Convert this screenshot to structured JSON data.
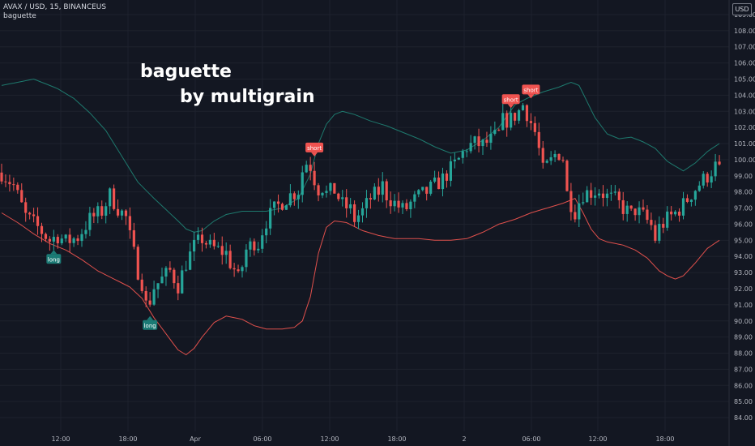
{
  "header": {
    "symbol_line": "AVAX / USD, 15, BINANCEUS",
    "indicator_name": "baguette"
  },
  "currency_badge": "USD",
  "watermark": {
    "line1": "baguette",
    "line2": "by multigrain"
  },
  "colors": {
    "background": "#131722",
    "grid": "#1e222d",
    "bull": "#26a69a",
    "bear": "#ef5350",
    "upper_band": "#1e7a6e",
    "lower_band": "#e0504c",
    "long_label": "#1b7a75",
    "short_label": "#ef5350",
    "axis_text": "#b2b5be"
  },
  "chart_data": {
    "type": "candlestick",
    "y_axis_labels": [
      "109.00",
      "108.00",
      "107.00",
      "106.00",
      "105.00",
      "104.00",
      "103.00",
      "102.00",
      "101.00",
      "100.00",
      "99.00",
      "98.00",
      "97.00",
      "96.00",
      "95.00",
      "94.00",
      "93.00",
      "92.00",
      "91.00",
      "90.00",
      "89.00",
      "88.00",
      "87.00",
      "86.00",
      "85.00",
      "84.00"
    ],
    "ylim": [
      83.5,
      109.5
    ],
    "x_axis_labels": [
      "12:00",
      "18:00",
      "Apr",
      "06:00",
      "12:00",
      "18:00",
      "2",
      "06:00",
      "12:00",
      "18:00"
    ],
    "close_path": [
      [
        0,
        99.2
      ],
      [
        3,
        98.4
      ],
      [
        6,
        96.5
      ],
      [
        9,
        95.8
      ],
      [
        12,
        95.0
      ],
      [
        14,
        95.3
      ],
      [
        16,
        94.9
      ],
      [
        19,
        95.2
      ],
      [
        22,
        96.3
      ],
      [
        25,
        96.8
      ],
      [
        27,
        97.8
      ],
      [
        29,
        97.0
      ],
      [
        31,
        96.4
      ],
      [
        32,
        95.2
      ],
      [
        34,
        93.1
      ],
      [
        35,
        92.4
      ],
      [
        36,
        91.0
      ],
      [
        37,
        91.3
      ],
      [
        38,
        92.1
      ],
      [
        40,
        92.6
      ],
      [
        42,
        93.1
      ],
      [
        44,
        92.2
      ],
      [
        46,
        93.6
      ],
      [
        48,
        94.6
      ],
      [
        50,
        95.1
      ],
      [
        52,
        94.6
      ],
      [
        54,
        94.4
      ],
      [
        56,
        94.2
      ],
      [
        57,
        93.6
      ],
      [
        58,
        93.2
      ],
      [
        59,
        92.6
      ],
      [
        60,
        93.4
      ],
      [
        61,
        94.4
      ],
      [
        63,
        94.9
      ],
      [
        64,
        94.8
      ],
      [
        65,
        95.6
      ],
      [
        66,
        96.2
      ],
      [
        68,
        96.9
      ],
      [
        70,
        97.4
      ],
      [
        72,
        97.8
      ],
      [
        74,
        98.1
      ],
      [
        75,
        99.3
      ],
      [
        76,
        99.8
      ],
      [
        77,
        99.6
      ],
      [
        78,
        98.8
      ],
      [
        79,
        98.2
      ],
      [
        80,
        98.3
      ],
      [
        81,
        97.9
      ],
      [
        83,
        98.1
      ],
      [
        85,
        97.2
      ],
      [
        87,
        96.9
      ],
      [
        88,
        96.3
      ],
      [
        90,
        96.8
      ],
      [
        92,
        97.6
      ],
      [
        94,
        98.0
      ],
      [
        95,
        98.4
      ],
      [
        96,
        97.8
      ],
      [
        98,
        97.3
      ],
      [
        100,
        96.9
      ],
      [
        101,
        97.0
      ],
      [
        102,
        97.3
      ],
      [
        104,
        97.7
      ],
      [
        106,
        98.0
      ],
      [
        108,
        98.4
      ],
      [
        110,
        98.8
      ],
      [
        112,
        99.4
      ],
      [
        114,
        100.0
      ],
      [
        116,
        100.8
      ],
      [
        118,
        101.0
      ],
      [
        120,
        100.9
      ],
      [
        122,
        101.2
      ],
      [
        124,
        101.6
      ],
      [
        125,
        102.4
      ],
      [
        127,
        102.5
      ],
      [
        129,
        103.0
      ],
      [
        130,
        103.4
      ],
      [
        131,
        102.9
      ],
      [
        133,
        101.7
      ],
      [
        134,
        100.6
      ],
      [
        135,
        99.3
      ],
      [
        137,
        99.9
      ],
      [
        138,
        100.3
      ],
      [
        139,
        100.4
      ],
      [
        140,
        100.1
      ],
      [
        141,
        97.9
      ],
      [
        142,
        97.3
      ],
      [
        143,
        96.8
      ],
      [
        144,
        97.4
      ],
      [
        145,
        97.9
      ],
      [
        147,
        98.0
      ],
      [
        149,
        98.1
      ],
      [
        151,
        97.7
      ],
      [
        153,
        97.5
      ],
      [
        155,
        97.0
      ],
      [
        157,
        96.6
      ],
      [
        158,
        96.9
      ],
      [
        160,
        96.5
      ],
      [
        161,
        96.2
      ],
      [
        162,
        95.9
      ],
      [
        163,
        95.1
      ],
      [
        164,
        95.8
      ],
      [
        166,
        96.3
      ],
      [
        168,
        96.7
      ],
      [
        170,
        97.2
      ],
      [
        172,
        97.9
      ],
      [
        174,
        98.5
      ],
      [
        176,
        99.0
      ],
      [
        178,
        99.6
      ],
      [
        179,
        99.3
      ]
    ],
    "upper_band": [
      [
        0,
        104.6
      ],
      [
        4,
        104.8
      ],
      [
        8,
        105.0
      ],
      [
        10,
        104.8
      ],
      [
        14,
        104.4
      ],
      [
        18,
        103.8
      ],
      [
        22,
        102.9
      ],
      [
        26,
        101.8
      ],
      [
        30,
        100.2
      ],
      [
        34,
        98.6
      ],
      [
        38,
        97.6
      ],
      [
        41,
        96.9
      ],
      [
        44,
        96.2
      ],
      [
        46,
        95.7
      ],
      [
        48,
        95.5
      ],
      [
        50,
        95.6
      ],
      [
        53,
        96.2
      ],
      [
        56,
        96.6
      ],
      [
        60,
        96.8
      ],
      [
        66,
        96.8
      ],
      [
        70,
        97.0
      ],
      [
        74,
        97.6
      ],
      [
        77,
        99.1
      ],
      [
        79,
        101.0
      ],
      [
        81,
        102.2
      ],
      [
        83,
        102.8
      ],
      [
        85,
        103.0
      ],
      [
        88,
        102.8
      ],
      [
        92,
        102.4
      ],
      [
        96,
        102.1
      ],
      [
        100,
        101.7
      ],
      [
        104,
        101.3
      ],
      [
        108,
        100.8
      ],
      [
        112,
        100.4
      ],
      [
        116,
        100.6
      ],
      [
        120,
        101.2
      ],
      [
        124,
        102.0
      ],
      [
        126,
        102.7
      ],
      [
        128,
        103.4
      ],
      [
        131,
        103.8
      ],
      [
        135,
        104.2
      ],
      [
        139,
        104.5
      ],
      [
        142,
        104.8
      ],
      [
        144,
        104.6
      ],
      [
        146,
        103.6
      ],
      [
        148,
        102.6
      ],
      [
        151,
        101.6
      ],
      [
        154,
        101.3
      ],
      [
        157,
        101.4
      ],
      [
        160,
        101.1
      ],
      [
        163,
        100.7
      ],
      [
        166,
        99.9
      ],
      [
        168,
        99.6
      ],
      [
        170,
        99.3
      ],
      [
        173,
        99.8
      ],
      [
        176,
        100.5
      ],
      [
        179,
        101.0
      ]
    ],
    "lower_band": [
      [
        0,
        96.7
      ],
      [
        4,
        96.1
      ],
      [
        8,
        95.4
      ],
      [
        12,
        94.8
      ],
      [
        16,
        94.4
      ],
      [
        20,
        93.8
      ],
      [
        24,
        93.1
      ],
      [
        28,
        92.6
      ],
      [
        32,
        92.1
      ],
      [
        35,
        91.4
      ],
      [
        38,
        90.2
      ],
      [
        41,
        89.2
      ],
      [
        44,
        88.2
      ],
      [
        46,
        87.9
      ],
      [
        48,
        88.3
      ],
      [
        50,
        89.0
      ],
      [
        53,
        89.9
      ],
      [
        56,
        90.3
      ],
      [
        60,
        90.1
      ],
      [
        63,
        89.7
      ],
      [
        66,
        89.5
      ],
      [
        70,
        89.5
      ],
      [
        73,
        89.6
      ],
      [
        75,
        90.0
      ],
      [
        77,
        91.5
      ],
      [
        79,
        94.2
      ],
      [
        81,
        95.8
      ],
      [
        83,
        96.2
      ],
      [
        86,
        96.1
      ],
      [
        90,
        95.6
      ],
      [
        94,
        95.3
      ],
      [
        98,
        95.1
      ],
      [
        104,
        95.1
      ],
      [
        108,
        95.0
      ],
      [
        112,
        95.0
      ],
      [
        116,
        95.1
      ],
      [
        120,
        95.5
      ],
      [
        124,
        96.0
      ],
      [
        128,
        96.3
      ],
      [
        132,
        96.7
      ],
      [
        136,
        97.0
      ],
      [
        140,
        97.3
      ],
      [
        143,
        97.6
      ],
      [
        145,
        96.7
      ],
      [
        147,
        95.7
      ],
      [
        149,
        95.1
      ],
      [
        151,
        94.9
      ],
      [
        155,
        94.7
      ],
      [
        158,
        94.4
      ],
      [
        161,
        93.9
      ],
      [
        164,
        93.1
      ],
      [
        166,
        92.8
      ],
      [
        168,
        92.6
      ],
      [
        170,
        92.8
      ],
      [
        173,
        93.6
      ],
      [
        176,
        94.5
      ],
      [
        179,
        95.0
      ]
    ],
    "signals": [
      {
        "type": "long",
        "label": "long",
        "bar": 13,
        "price": 94.6
      },
      {
        "type": "long",
        "label": "long",
        "bar": 37,
        "price": 90.5
      },
      {
        "type": "short",
        "label": "short",
        "bar": 78,
        "price": 100.0
      },
      {
        "type": "short",
        "label": "short",
        "bar": 127,
        "price": 103.0
      },
      {
        "type": "short",
        "label": "short",
        "bar": 132,
        "price": 103.6
      }
    ]
  }
}
